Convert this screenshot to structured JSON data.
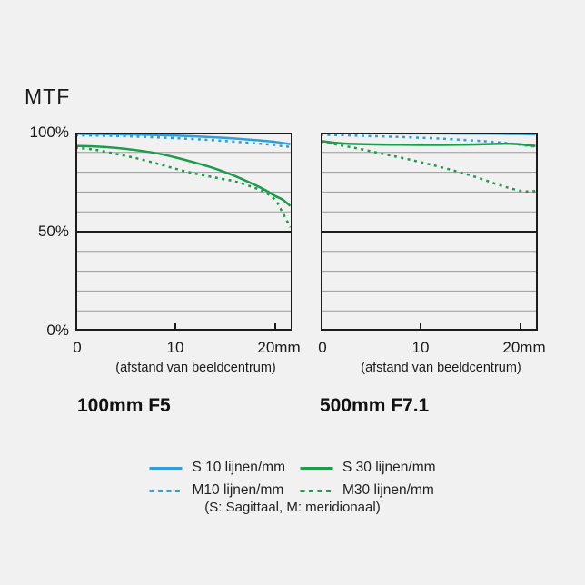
{
  "page": {
    "mtf_label": "MTF",
    "background": "#f1f1f2"
  },
  "colors": {
    "blue": "#2e9fd8",
    "green": "#1e9b4d",
    "grid": "#9a9a9a",
    "frame": "#1c1c1c",
    "text": "#1a1a1a"
  },
  "axes": {
    "y_tick_labels": [
      "100%",
      "50%",
      "0%"
    ],
    "x_tick_labels": [
      "0",
      "10",
      "20mm"
    ],
    "x_caption": "(afstand van beeldcentrum)",
    "y_grid_step_pct": 10,
    "x_tick_positions_mm": [
      0,
      10,
      20
    ]
  },
  "legend": {
    "items": [
      {
        "key": "s10",
        "label": "S 10 lijnen/mm",
        "color": "#2e9fd8",
        "style": "solid"
      },
      {
        "key": "s30",
        "label": "S 30 lijnen/mm",
        "color": "#1e9b4d",
        "style": "solid"
      },
      {
        "key": "m10",
        "label": "M10 lijnen/mm",
        "color": "#2e9fd8",
        "style": "dashed"
      },
      {
        "key": "m30",
        "label": "M30 lijnen/mm",
        "color": "#1e9b4d",
        "style": "dashed"
      }
    ],
    "note": "(S: Sagittaal, M: meridionaal)"
  },
  "chart_data": [
    {
      "type": "line",
      "title": "100mm F5",
      "xlabel": "(afstand van beeldcentrum)",
      "ylabel": "MTF",
      "xlim": [
        0,
        21.5
      ],
      "ylim": [
        0,
        100
      ],
      "grid": true,
      "x_mm": [
        0,
        2,
        4,
        6,
        8,
        10,
        12,
        14,
        16,
        18,
        19,
        20,
        20.7,
        21.5
      ],
      "series": [
        {
          "key": "m10",
          "name": "M10 lijnen/mm",
          "color": "#2e9fd8",
          "style": "dashed",
          "values": [
            98.6,
            98.5,
            98.3,
            98.0,
            97.6,
            97.2,
            96.7,
            96.1,
            95.4,
            94.6,
            94.2,
            93.7,
            93.2,
            92.8
          ]
        },
        {
          "key": "m30",
          "name": "M30 lijnen/mm",
          "color": "#1e9b4d",
          "style": "dashed",
          "values": [
            92.4,
            91.3,
            89.3,
            87.2,
            84.6,
            81.8,
            79.3,
            77.3,
            75.3,
            72.0,
            69.8,
            66.0,
            60.0,
            52.2
          ]
        },
        {
          "key": "s10",
          "name": "S 10 lijnen/mm",
          "color": "#2e9fd8",
          "style": "solid",
          "values": [
            99.4,
            99.3,
            99.2,
            99.0,
            98.8,
            98.5,
            98.1,
            97.6,
            97.0,
            96.2,
            95.8,
            95.3,
            94.8,
            94.2
          ]
        },
        {
          "key": "s30",
          "name": "S 30 lijnen/mm",
          "color": "#1e9b4d",
          "style": "solid",
          "values": [
            93.3,
            93.0,
            92.3,
            91.2,
            89.7,
            87.5,
            84.8,
            81.8,
            78.0,
            73.5,
            71.0,
            68.0,
            66.3,
            63.0
          ]
        }
      ]
    },
    {
      "type": "line",
      "title": "500mm F7.1",
      "xlabel": "(afstand van beeldcentrum)",
      "ylabel": "MTF",
      "xlim": [
        0,
        21.5
      ],
      "ylim": [
        0,
        100
      ],
      "grid": true,
      "x_mm": [
        0,
        2,
        4,
        6,
        8,
        10,
        12,
        14,
        16,
        18,
        19,
        20,
        20.7,
        21.5
      ],
      "series": [
        {
          "key": "m10",
          "name": "M10 lijnen/mm",
          "color": "#2e9fd8",
          "style": "dashed",
          "values": [
            98.9,
            98.7,
            98.4,
            98.1,
            97.8,
            97.4,
            97.0,
            96.4,
            95.8,
            95.0,
            94.5,
            93.9,
            93.4,
            93.0
          ]
        },
        {
          "key": "m30",
          "name": "M30 lijnen/mm",
          "color": "#1e9b4d",
          "style": "dashed",
          "values": [
            95.4,
            93.6,
            91.7,
            89.5,
            87.4,
            85.1,
            82.6,
            79.9,
            76.8,
            73.3,
            71.9,
            70.6,
            70.3,
            70.5
          ]
        },
        {
          "key": "s10",
          "name": "S 10 lijnen/mm",
          "color": "#2e9fd8",
          "style": "solid",
          "values": [
            99.7,
            99.7,
            99.7,
            99.7,
            99.6,
            99.6,
            99.6,
            99.5,
            99.5,
            99.4,
            99.3,
            99.3,
            99.2,
            99.1
          ]
        },
        {
          "key": "s30",
          "name": "S 30 lijnen/mm",
          "color": "#1e9b4d",
          "style": "solid",
          "values": [
            95.8,
            94.6,
            94.2,
            94.0,
            93.9,
            93.8,
            93.8,
            93.9,
            94.1,
            94.4,
            94.4,
            94.1,
            93.7,
            93.3
          ]
        }
      ]
    }
  ]
}
